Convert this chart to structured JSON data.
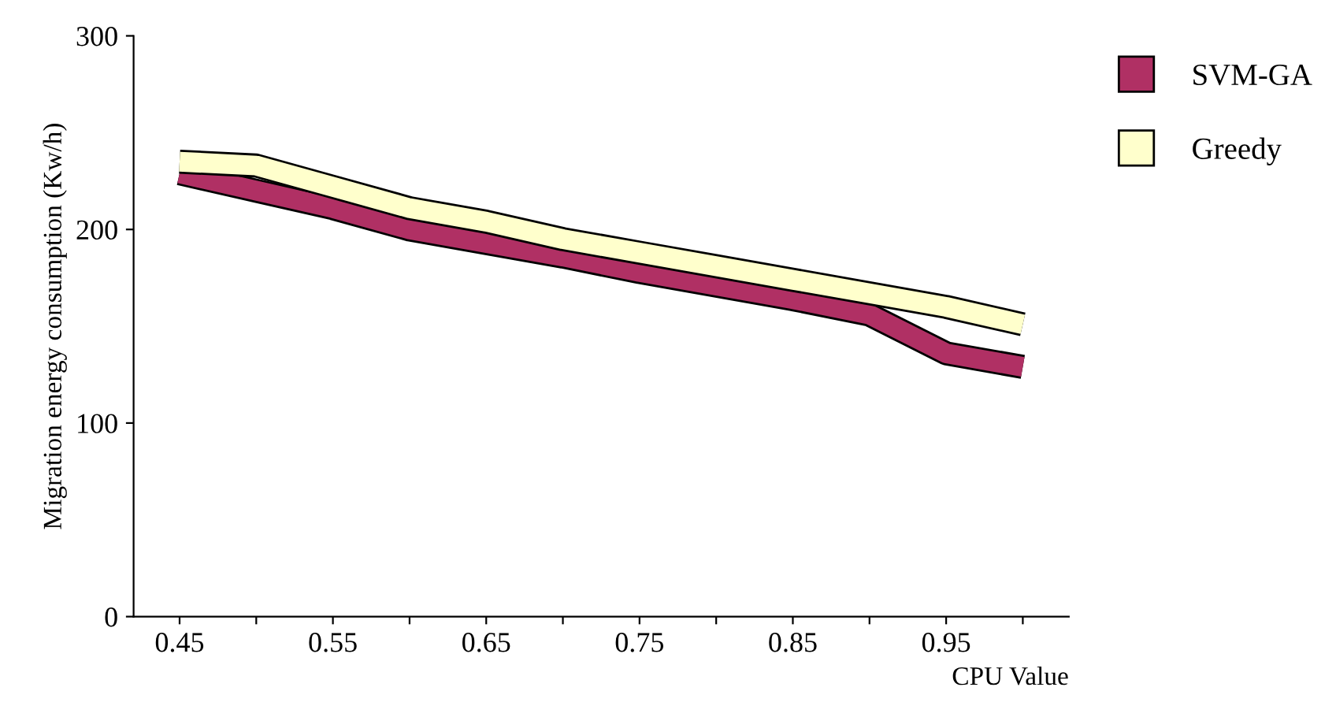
{
  "chart_data": {
    "type": "line",
    "xlabel": "CPU Value",
    "ylabel": "Migration energy consumption (Kw/h)",
    "categories": [
      "0.45",
      null,
      "0.55",
      null,
      "0.65",
      null,
      "0.75",
      null,
      "0.85",
      null,
      "0.95",
      null
    ],
    "series": [
      {
        "name": "SVM-GA",
        "color": "#b03064",
        "values": [
          229,
          220,
          211,
          200,
          193,
          186,
          178,
          171,
          164,
          156,
          136,
          129
        ]
      },
      {
        "name": "Greedy",
        "color": "#ffffcc",
        "values": [
          235,
          233,
          222,
          211,
          204,
          195,
          188,
          181,
          174,
          167,
          160,
          151
        ]
      }
    ],
    "ylim": [
      0,
      300
    ],
    "yticks": [
      0,
      100,
      200,
      300
    ],
    "grid": false,
    "legend": "top right",
    "marker": "none",
    "line_style": "solid"
  }
}
